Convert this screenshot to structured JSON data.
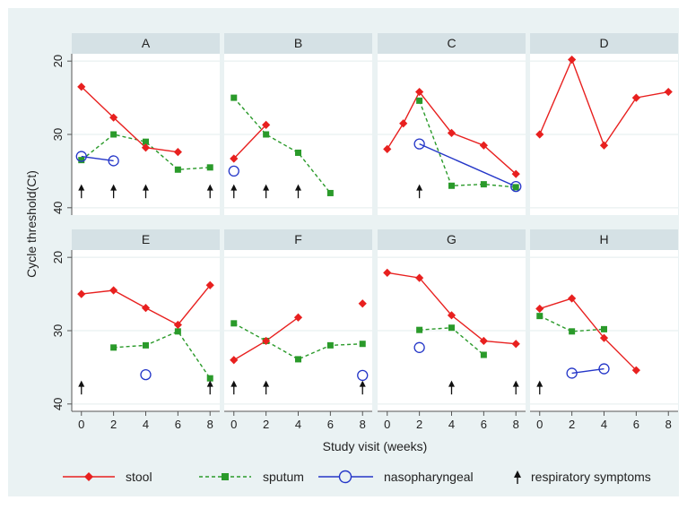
{
  "chart_data": {
    "type": "line",
    "facets": [
      "A",
      "B",
      "C",
      "D",
      "E",
      "F",
      "G",
      "H"
    ],
    "xlabel": "Study visit (weeks)",
    "ylabel": "Cycle threshold(Ct)",
    "x_ticks": [
      0,
      2,
      4,
      6,
      8
    ],
    "y_ticks": [
      20,
      30,
      40
    ],
    "xlim": [
      -0.6,
      8.6
    ],
    "ylim": [
      19,
      41
    ],
    "y_reversed": true,
    "legend_position": "bottom",
    "legend": [
      {
        "key": "stool",
        "label": "stool"
      },
      {
        "key": "sputum",
        "label": "sputum"
      },
      {
        "key": "naso",
        "label": "nasopharyngeal"
      },
      {
        "key": "resp",
        "label": "respiratory symptoms"
      }
    ],
    "series_styles": {
      "stool": {
        "color": "#e8201f",
        "marker": "diamond",
        "line": "solid"
      },
      "sputum": {
        "color": "#2a9a2a",
        "marker": "square",
        "line": "dashed"
      },
      "naso": {
        "color": "#2436c8",
        "marker": "hollow-circle",
        "line": "solid"
      },
      "resp": {
        "color": "#111111",
        "marker": "arrow"
      }
    },
    "panels": [
      {
        "label": "A",
        "stool": [
          [
            0,
            23.5
          ],
          [
            2,
            27.7
          ],
          [
            4,
            31.8
          ],
          [
            6,
            32.4
          ]
        ],
        "sputum": [
          [
            0,
            33.5
          ],
          [
            2,
            30
          ],
          [
            4,
            31
          ],
          [
            6,
            34.8
          ],
          [
            8,
            34.5
          ]
        ],
        "naso": [
          [
            0,
            33
          ],
          [
            2,
            33.6
          ]
        ],
        "resp": [
          0,
          2,
          4,
          8
        ]
      },
      {
        "label": "B",
        "stool": [
          [
            0,
            33.3
          ],
          [
            2,
            28.7
          ]
        ],
        "sputum": [
          [
            0,
            25
          ],
          [
            2,
            30
          ],
          [
            4,
            32.5
          ],
          [
            6,
            38
          ]
        ],
        "naso": [
          [
            0,
            35
          ]
        ],
        "resp": [
          0,
          2,
          4
        ]
      },
      {
        "label": "C",
        "stool": [
          [
            0,
            32
          ],
          [
            1,
            28.5
          ],
          [
            2,
            24.2
          ],
          [
            4,
            29.8
          ],
          [
            6,
            31.5
          ],
          [
            8,
            35.4
          ]
        ],
        "sputum": [
          [
            2,
            25.4
          ],
          [
            4,
            37
          ],
          [
            6,
            36.8
          ],
          [
            8,
            37.2
          ]
        ],
        "naso": [
          [
            2,
            31.3
          ],
          [
            8,
            37.1
          ]
        ],
        "resp": [
          2
        ]
      },
      {
        "label": "D",
        "stool": [
          [
            0,
            30
          ],
          [
            2,
            19.8
          ],
          [
            4,
            31.5
          ],
          [
            6,
            25
          ],
          [
            8,
            24.2
          ]
        ],
        "sputum": [],
        "naso": [],
        "resp": []
      },
      {
        "label": "E",
        "stool": [
          [
            0,
            25
          ],
          [
            2,
            24.5
          ],
          [
            4,
            26.9
          ],
          [
            6,
            29.2
          ],
          [
            8,
            23.8
          ]
        ],
        "sputum": [
          [
            2,
            32.3
          ],
          [
            4,
            32
          ],
          [
            6,
            30.1
          ],
          [
            8,
            36.5
          ]
        ],
        "naso": [
          [
            4,
            36
          ]
        ],
        "resp": [
          0,
          8
        ]
      },
      {
        "label": "F",
        "stool": [
          [
            0,
            34
          ],
          [
            2,
            31.4
          ],
          [
            4,
            28.2
          ]
        ],
        "sputum": [
          [
            0,
            29
          ],
          [
            2,
            31.4
          ],
          [
            4,
            33.9
          ],
          [
            6,
            32
          ],
          [
            8,
            31.8
          ]
        ],
        "stool_unconnected": [
          [
            8,
            26.3
          ]
        ],
        "naso": [
          [
            8,
            36.1
          ]
        ],
        "resp": [
          0,
          2,
          8
        ]
      },
      {
        "label": "G",
        "stool": [
          [
            0,
            22.1
          ],
          [
            2,
            22.8
          ],
          [
            4,
            27.9
          ],
          [
            6,
            31.4
          ],
          [
            8,
            31.8
          ]
        ],
        "sputum": [
          [
            2,
            29.9
          ],
          [
            4,
            29.6
          ],
          [
            6,
            33.3
          ]
        ],
        "naso": [
          [
            2,
            32.3
          ]
        ],
        "resp": [
          4,
          8
        ]
      },
      {
        "label": "H",
        "stool": [
          [
            0,
            27
          ],
          [
            2,
            25.6
          ],
          [
            4,
            31
          ],
          [
            6,
            35.4
          ]
        ],
        "sputum": [
          [
            0,
            28
          ],
          [
            2,
            30.1
          ],
          [
            4,
            29.8
          ]
        ],
        "naso": [
          [
            2,
            35.8
          ],
          [
            4,
            35.2
          ]
        ],
        "resp": [
          0
        ]
      }
    ]
  }
}
